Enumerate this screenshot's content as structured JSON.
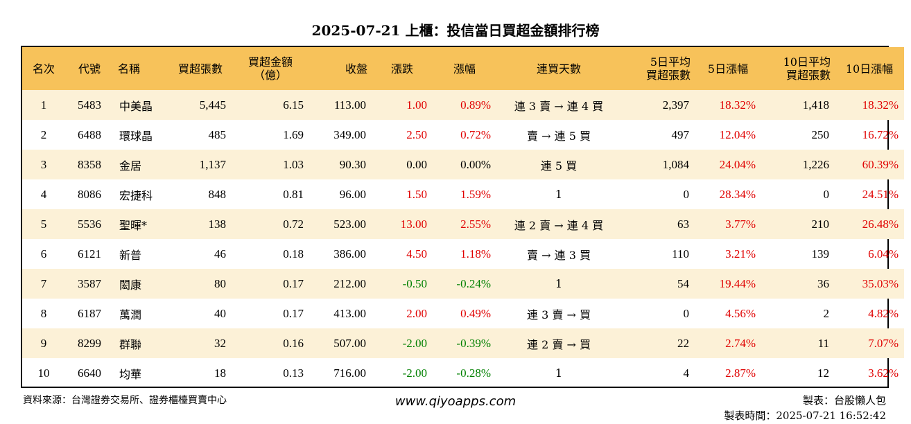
{
  "title": "2025-07-21 上櫃：投信當日買超金額排行榜",
  "headers": [
    {
      "key": "rank",
      "line1": "名次",
      "line2": ""
    },
    {
      "key": "code",
      "line1": "代號",
      "line2": ""
    },
    {
      "key": "name",
      "line1": "名稱",
      "line2": ""
    },
    {
      "key": "net_shares",
      "line1": "買超張數",
      "line2": ""
    },
    {
      "key": "net_amount",
      "line1": "買超金額",
      "line2": "（億）"
    },
    {
      "key": "close",
      "line1": "收盤",
      "line2": ""
    },
    {
      "key": "change",
      "line1": "漲跌",
      "line2": ""
    },
    {
      "key": "pct",
      "line1": "漲幅",
      "line2": ""
    },
    {
      "key": "streak",
      "line1": "連買天數",
      "line2": ""
    },
    {
      "key": "avg5",
      "line1": "5日平均",
      "line2": "買超張數"
    },
    {
      "key": "pct5",
      "line1": "5日漲幅",
      "line2": ""
    },
    {
      "key": "avg10",
      "line1": "10日平均",
      "line2": "買超張數"
    },
    {
      "key": "pct10",
      "line1": "10日漲幅",
      "line2": ""
    }
  ],
  "rows": [
    {
      "rank": "1",
      "code": "5483",
      "name": "中美晶",
      "net_shares": "5,445",
      "net_amount": "6.15",
      "close": "113.00",
      "change": "1.00",
      "pct": "0.89%",
      "dir": "up",
      "streak": "連 3 賣 → 連 4 買",
      "avg5": "2,397",
      "pct5": "18.32%",
      "avg10": "1,418",
      "pct10": "18.32%"
    },
    {
      "rank": "2",
      "code": "6488",
      "name": "環球晶",
      "net_shares": "485",
      "net_amount": "1.69",
      "close": "349.00",
      "change": "2.50",
      "pct": "0.72%",
      "dir": "up",
      "streak": "賣 → 連 5 買",
      "avg5": "497",
      "pct5": "12.04%",
      "avg10": "250",
      "pct10": "16.72%"
    },
    {
      "rank": "3",
      "code": "8358",
      "name": "金居",
      "net_shares": "1,137",
      "net_amount": "1.03",
      "close": "90.30",
      "change": "0.00",
      "pct": "0.00%",
      "dir": "flat",
      "streak": "連 5 買",
      "avg5": "1,084",
      "pct5": "24.04%",
      "avg10": "1,226",
      "pct10": "60.39%"
    },
    {
      "rank": "4",
      "code": "8086",
      "name": "宏捷科",
      "net_shares": "848",
      "net_amount": "0.81",
      "close": "96.00",
      "change": "1.50",
      "pct": "1.59%",
      "dir": "up",
      "streak": "1",
      "avg5": "0",
      "pct5": "28.34%",
      "avg10": "0",
      "pct10": "24.51%"
    },
    {
      "rank": "5",
      "code": "5536",
      "name": "聖暉*",
      "net_shares": "138",
      "net_amount": "0.72",
      "close": "523.00",
      "change": "13.00",
      "pct": "2.55%",
      "dir": "up",
      "streak": "連 2 賣 → 連 4 買",
      "avg5": "63",
      "pct5": "3.77%",
      "avg10": "210",
      "pct10": "26.48%"
    },
    {
      "rank": "6",
      "code": "6121",
      "name": "新普",
      "net_shares": "46",
      "net_amount": "0.18",
      "close": "386.00",
      "change": "4.50",
      "pct": "1.18%",
      "dir": "up",
      "streak": "賣 → 連 3 買",
      "avg5": "110",
      "pct5": "3.21%",
      "avg10": "139",
      "pct10": "6.04%"
    },
    {
      "rank": "7",
      "code": "3587",
      "name": "閎康",
      "net_shares": "80",
      "net_amount": "0.17",
      "close": "212.00",
      "change": "-0.50",
      "pct": "-0.24%",
      "dir": "down",
      "streak": "1",
      "avg5": "54",
      "pct5": "19.44%",
      "avg10": "36",
      "pct10": "35.03%"
    },
    {
      "rank": "8",
      "code": "6187",
      "name": "萬潤",
      "net_shares": "40",
      "net_amount": "0.17",
      "close": "413.00",
      "change": "2.00",
      "pct": "0.49%",
      "dir": "up",
      "streak": "連 3 賣 → 買",
      "avg5": "0",
      "pct5": "4.56%",
      "avg10": "2",
      "pct10": "4.82%"
    },
    {
      "rank": "9",
      "code": "8299",
      "name": "群聯",
      "net_shares": "32",
      "net_amount": "0.16",
      "close": "507.00",
      "change": "-2.00",
      "pct": "-0.39%",
      "dir": "down",
      "streak": "連 2 賣 → 買",
      "avg5": "22",
      "pct5": "2.74%",
      "avg10": "11",
      "pct10": "7.07%"
    },
    {
      "rank": "10",
      "code": "6640",
      "name": "均華",
      "net_shares": "18",
      "net_amount": "0.13",
      "close": "716.00",
      "change": "-2.00",
      "pct": "-0.28%",
      "dir": "down",
      "streak": "1",
      "avg5": "4",
      "pct5": "2.87%",
      "avg10": "12",
      "pct10": "3.62%"
    }
  ],
  "colors": {
    "header_bg": "#f7c25a",
    "stripe_bg": "#fcf1d7",
    "up": "#e00000",
    "down": "#008000"
  },
  "footer": {
    "source": "資料來源：台灣證券交易所、證券櫃檯買賣中心",
    "site": "www.qiyoapps.com",
    "maker": "製表：台股懶人包",
    "time": "製表時間：2025-07-21 16:52:42"
  }
}
